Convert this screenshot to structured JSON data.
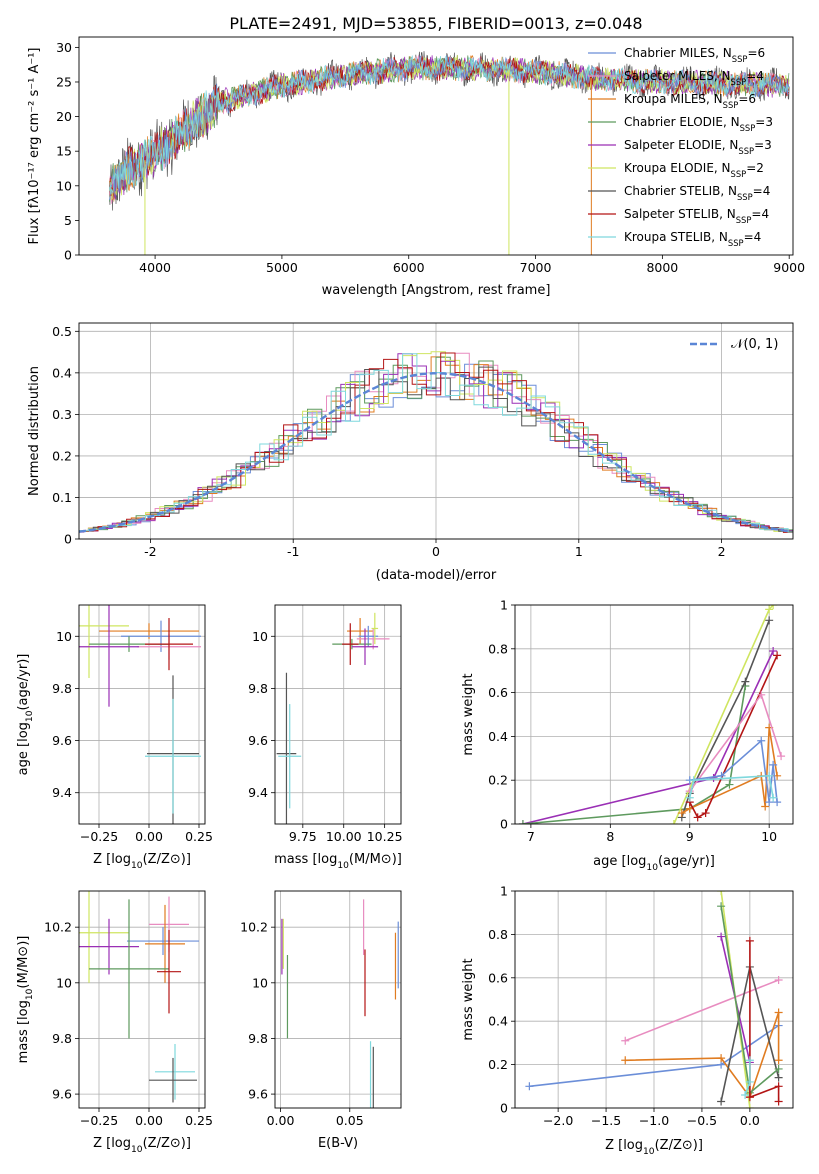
{
  "figure": {
    "title": "PLATE=2491, MJD=53855, FIBERID=0013, z=0.048"
  },
  "legend_spectrum": [
    {
      "label": "Chabrier MILES, N",
      "sub": "SSP",
      "eq": "=6",
      "color": "#6b8ed8"
    },
    {
      "label": "Salpeter MILES, N",
      "sub": "SSP",
      "eq": "=4",
      "color": "#e88cc0"
    },
    {
      "label": "Kroupa MILES, N",
      "sub": "SSP",
      "eq": "=6",
      "color": "#e07c21"
    },
    {
      "label": "Chabrier ELODIE, N",
      "sub": "SSP",
      "eq": "=3",
      "color": "#5e9a5e"
    },
    {
      "label": "Salpeter ELODIE, N",
      "sub": "SSP",
      "eq": "=3",
      "color": "#9a2fb5"
    },
    {
      "label": "Kroupa ELODIE, N",
      "sub": "SSP",
      "eq": "=2",
      "color": "#cfe560"
    },
    {
      "label": "Chabrier STELIB, N",
      "sub": "SSP",
      "eq": "=4",
      "color": "#555555"
    },
    {
      "label": "Salpeter STELIB, N",
      "sub": "SSP",
      "eq": "=4",
      "color": "#b31515"
    },
    {
      "label": "Kroupa STELIB, N",
      "sub": "SSP",
      "eq": "=4",
      "color": "#7fd8dd"
    }
  ],
  "chart_data": [
    {
      "id": "spectrum",
      "type": "line",
      "xlabel": "wavelength [Angstrom, rest frame]",
      "ylabel": "Flux [fλ10⁻¹⁷ erg cm⁻² s⁻¹ A⁻¹]",
      "xlim": [
        3400,
        9030
      ],
      "ylim": [
        0,
        31.5
      ],
      "xticks": [
        4000,
        5000,
        6000,
        7000,
        8000,
        9000
      ],
      "yticks": [
        0,
        5,
        10,
        15,
        20,
        25,
        30
      ],
      "grid": false,
      "legend": "right",
      "data_range": [
        3640,
        9000
      ],
      "continuum": [
        [
          3640,
          9.5
        ],
        [
          3800,
          12.5
        ],
        [
          4000,
          14.5
        ],
        [
          4200,
          17.5
        ],
        [
          4500,
          22
        ],
        [
          5000,
          24.5
        ],
        [
          5500,
          26
        ],
        [
          6000,
          27
        ],
        [
          6500,
          27
        ],
        [
          7000,
          26.5
        ],
        [
          7500,
          25.5
        ],
        [
          8000,
          25
        ],
        [
          8500,
          24.8
        ],
        [
          9000,
          24.5
        ]
      ]
    },
    {
      "id": "residuals",
      "type": "histogram",
      "xlabel": "(data-model)/error",
      "ylabel": "Normed distribution",
      "xlim": [
        -2.5,
        2.5
      ],
      "ylim": [
        0,
        0.52
      ],
      "xticks": [
        -2,
        -1,
        0,
        1,
        2
      ],
      "yticks": [
        0,
        0.1,
        0.2,
        0.3,
        0.4,
        0.5
      ],
      "grid": true,
      "legend": "top-right",
      "reference_curve": {
        "label": "𝒩(0, 1)",
        "mean": 0,
        "sigma": 1,
        "color": "#5b86d6"
      }
    },
    {
      "id": "age_vs_Z",
      "type": "errorbar",
      "xlabel": "Z [log₁₀(Z/Z⊙)]",
      "ylabel": "age  [log₁₀(age/yr)]",
      "xlim": [
        -0.35,
        0.28
      ],
      "ylim": [
        9.28,
        10.12
      ],
      "xticks": [
        -0.25,
        0.0,
        0.25
      ],
      "xticklabels": [
        "−0.25",
        "0.00",
        "0.25"
      ],
      "yticks": [
        9.4,
        9.6,
        9.8,
        10.0
      ],
      "grid": true,
      "points": [
        {
          "x": 0.0,
          "y": 10.02,
          "xerr": 0.25,
          "yerr": 0.03,
          "color": "#e07c21"
        },
        {
          "x": 0.06,
          "y": 10.0,
          "xerr": 0.2,
          "yerr": 0.06,
          "color": "#6b8ed8"
        },
        {
          "x": 0.1,
          "y": 9.96,
          "xerr": 0.16,
          "yerr": 0.05,
          "color": "#e88cc0"
        },
        {
          "x": -0.3,
          "y": 10.04,
          "xerr": 0.2,
          "yerr": 0.2,
          "color": "#cfe560"
        },
        {
          "x": -0.1,
          "y": 9.97,
          "xerr": 0.2,
          "yerr": 0.03,
          "color": "#5e9a5e"
        },
        {
          "x": -0.2,
          "y": 9.96,
          "xerr": 0.15,
          "yerr": 0.23,
          "color": "#9a2fb5"
        },
        {
          "x": 0.1,
          "y": 9.97,
          "xerr": 0.12,
          "yerr": 0.1,
          "color": "#b31515"
        },
        {
          "x": 0.12,
          "y": 9.55,
          "xerr": 0.13,
          "yerr": 0.3,
          "color": "#555555"
        },
        {
          "x": 0.12,
          "y": 9.54,
          "xerr": 0.14,
          "yerr": 0.22,
          "color": "#7fd8dd"
        }
      ]
    },
    {
      "id": "age_vs_mass",
      "type": "errorbar",
      "xlabel": "mass [log₁₀(M/M⊙)]",
      "ylabel": "",
      "xlim": [
        9.58,
        10.35
      ],
      "ylim": [
        9.28,
        10.12
      ],
      "xticks": [
        9.75,
        10.0,
        10.25
      ],
      "xticklabels": [
        "9.75",
        "10.00",
        "10.25"
      ],
      "yticks": [
        9.4,
        9.6,
        9.8,
        10.0
      ],
      "grid": true,
      "points": [
        {
          "x": 10.1,
          "y": 10.02,
          "xerr": 0.08,
          "yerr": 0.05,
          "color": "#e07c21"
        },
        {
          "x": 10.18,
          "y": 9.99,
          "xerr": 0.1,
          "yerr": 0.04,
          "color": "#e88cc0"
        },
        {
          "x": 10.15,
          "y": 10.0,
          "xerr": 0.06,
          "yerr": 0.04,
          "color": "#6b8ed8"
        },
        {
          "x": 10.05,
          "y": 9.97,
          "xerr": 0.12,
          "yerr": 0.02,
          "color": "#5e9a5e"
        },
        {
          "x": 10.13,
          "y": 9.96,
          "xerr": 0.08,
          "yerr": 0.07,
          "color": "#9a2fb5"
        },
        {
          "x": 10.04,
          "y": 9.97,
          "xerr": 0.05,
          "yerr": 0.08,
          "color": "#b31515"
        },
        {
          "x": 10.19,
          "y": 10.03,
          "xerr": 0.02,
          "yerr": 0.06,
          "color": "#cfe560"
        },
        {
          "x": 9.65,
          "y": 9.55,
          "xerr": 0.06,
          "yerr": 0.31,
          "color": "#555555"
        },
        {
          "x": 9.67,
          "y": 9.54,
          "xerr": 0.07,
          "yerr": 0.2,
          "color": "#7fd8dd"
        }
      ]
    },
    {
      "id": "weight_vs_age",
      "type": "line",
      "xlabel": "age  [log₁₀(age/yr)]",
      "ylabel": "mass weight",
      "xlim": [
        6.8,
        10.3
      ],
      "ylim": [
        0,
        1.0
      ],
      "xticks": [
        7,
        8,
        9,
        10
      ],
      "yticks": [
        0,
        0.2,
        0.4,
        0.6,
        0.8,
        1.0
      ],
      "grid": true,
      "series": [
        {
          "color": "#9a2fb5",
          "points": [
            [
              6.9,
              0.0
            ],
            [
              9.3,
              0.21
            ],
            [
              10.05,
              0.79
            ]
          ]
        },
        {
          "color": "#5e9a5e",
          "points": [
            [
              6.9,
              0.0
            ],
            [
              9.0,
              0.07
            ],
            [
              9.5,
              0.18
            ],
            [
              9.7,
              0.63
            ]
          ]
        },
        {
          "color": "#555555",
          "points": [
            [
              8.9,
              0.03
            ],
            [
              9.0,
              0.14
            ],
            [
              9.7,
              0.65
            ],
            [
              10.0,
              0.93
            ]
          ]
        },
        {
          "color": "#cfe560",
          "points": [
            [
              8.8,
              0.0
            ],
            [
              10.0,
              0.98
            ],
            [
              10.05,
              1.0
            ]
          ]
        },
        {
          "color": "#e07c21",
          "points": [
            [
              8.9,
              0.05
            ],
            [
              9.0,
              0.07
            ],
            [
              9.9,
              0.22
            ],
            [
              9.95,
              0.08
            ],
            [
              10.0,
              0.44
            ],
            [
              10.1,
              0.22
            ]
          ]
        },
        {
          "color": "#b31515",
          "points": [
            [
              9.0,
              0.1
            ],
            [
              9.1,
              0.03
            ],
            [
              9.2,
              0.05
            ],
            [
              10.1,
              0.77
            ]
          ]
        },
        {
          "color": "#e88cc0",
          "points": [
            [
              9.0,
              0.15
            ],
            [
              9.9,
              0.59
            ],
            [
              10.15,
              0.31
            ]
          ]
        },
        {
          "color": "#6b8ed8",
          "points": [
            [
              9.0,
              0.2
            ],
            [
              9.4,
              0.22
            ],
            [
              9.9,
              0.38
            ],
            [
              10.0,
              0.1
            ],
            [
              10.05,
              0.27
            ],
            [
              10.1,
              0.1
            ]
          ]
        },
        {
          "color": "#7fd8dd",
          "points": [
            [
              9.0,
              0.12
            ],
            [
              9.05,
              0.2
            ],
            [
              10.0,
              0.22
            ],
            [
              10.05,
              0.12
            ]
          ]
        }
      ]
    },
    {
      "id": "mass_vs_Z",
      "type": "errorbar",
      "xlabel": "Z [log₁₀(Z/Z⊙)]",
      "ylabel": "mass [log₁₀(M/M⊙)]",
      "xlim": [
        -0.35,
        0.28
      ],
      "ylim": [
        9.55,
        10.33
      ],
      "xticks": [
        -0.25,
        0.0,
        0.25
      ],
      "xticklabels": [
        "−0.25",
        "0.00",
        "0.25"
      ],
      "yticks": [
        9.6,
        9.8,
        10.0,
        10.2
      ],
      "grid": true,
      "points": [
        {
          "x": -0.3,
          "y": 10.18,
          "xerr": 0.2,
          "yerr": 0.18,
          "color": "#cfe560"
        },
        {
          "x": -0.2,
          "y": 10.13,
          "xerr": 0.15,
          "yerr": 0.1,
          "color": "#9a2fb5"
        },
        {
          "x": 0.1,
          "y": 10.21,
          "xerr": 0.1,
          "yerr": 0.1,
          "color": "#e88cc0"
        },
        {
          "x": 0.07,
          "y": 10.15,
          "xerr": 0.18,
          "yerr": 0.05,
          "color": "#6b8ed8"
        },
        {
          "x": 0.08,
          "y": 10.14,
          "xerr": 0.1,
          "yerr": 0.14,
          "color": "#e07c21"
        },
        {
          "x": -0.1,
          "y": 10.05,
          "xerr": 0.2,
          "yerr": 0.25,
          "color": "#5e9a5e"
        },
        {
          "x": 0.1,
          "y": 10.04,
          "xerr": 0.06,
          "yerr": 0.15,
          "color": "#b31515"
        },
        {
          "x": 0.13,
          "y": 9.68,
          "xerr": 0.1,
          "yerr": 0.1,
          "color": "#7fd8dd"
        },
        {
          "x": 0.12,
          "y": 9.65,
          "xerr": 0.12,
          "yerr": 0.08,
          "color": "#555555"
        }
      ]
    },
    {
      "id": "mass_vs_ebv",
      "type": "errorbar",
      "xlabel": "E(B-V)",
      "ylabel": "",
      "xlim": [
        -0.004,
        0.087
      ],
      "ylim": [
        9.55,
        10.33
      ],
      "xticks": [
        0.0,
        0.05
      ],
      "xticklabels": [
        "0.00",
        "0.05"
      ],
      "yticks": [
        9.6,
        9.8,
        10.0,
        10.2
      ],
      "grid": true,
      "points": [
        {
          "x": 0.002,
          "y": 10.14,
          "xerr": 0,
          "yerr": 0.09,
          "color": "#cfe560"
        },
        {
          "x": 0.001,
          "y": 10.13,
          "xerr": 0,
          "yerr": 0.1,
          "color": "#9a2fb5"
        },
        {
          "x": 0.005,
          "y": 9.95,
          "xerr": 0,
          "yerr": 0.15,
          "color": "#5e9a5e"
        },
        {
          "x": 0.06,
          "y": 10.2,
          "xerr": 0,
          "yerr": 0.1,
          "color": "#e88cc0"
        },
        {
          "x": 0.061,
          "y": 10.0,
          "xerr": 0,
          "yerr": 0.12,
          "color": "#b31515"
        },
        {
          "x": 0.083,
          "y": 10.06,
          "xerr": 0,
          "yerr": 0.12,
          "color": "#e07c21"
        },
        {
          "x": 0.085,
          "y": 10.1,
          "xerr": 0,
          "yerr": 0.12,
          "color": "#6b8ed8"
        },
        {
          "x": 0.065,
          "y": 9.67,
          "xerr": 0,
          "yerr": 0.12,
          "color": "#7fd8dd"
        },
        {
          "x": 0.067,
          "y": 9.66,
          "xerr": 0,
          "yerr": 0.11,
          "color": "#555555"
        }
      ]
    },
    {
      "id": "weight_vs_Z",
      "type": "line",
      "xlabel": "Z [log₁₀(Z/Z⊙)]",
      "ylabel": "mass weight",
      "xlim": [
        -2.45,
        0.45
      ],
      "ylim": [
        0,
        1.0
      ],
      "xticks": [
        -2.0,
        -1.5,
        -1.0,
        -0.5,
        0.0
      ],
      "xticklabels": [
        "−2.0",
        "−1.5",
        "−1.0",
        "−0.5",
        "0.0"
      ],
      "yticks": [
        0,
        0.2,
        0.4,
        0.6,
        0.8,
        1.0
      ],
      "grid": true,
      "series": [
        {
          "color": "#6b8ed8",
          "points": [
            [
              -2.3,
              0.1
            ],
            [
              -0.3,
              0.2
            ],
            [
              0.3,
              0.38
            ]
          ]
        },
        {
          "color": "#e88cc0",
          "points": [
            [
              -1.3,
              0.31
            ],
            [
              0.3,
              0.59
            ]
          ]
        },
        {
          "color": "#e07c21",
          "points": [
            [
              -1.3,
              0.22
            ],
            [
              -0.3,
              0.23
            ],
            [
              0.0,
              0.05
            ],
            [
              0.3,
              0.44
            ],
            [
              0.3,
              0.22
            ]
          ]
        },
        {
          "color": "#9a2fb5",
          "points": [
            [
              -0.3,
              0.79
            ],
            [
              0.0,
              0.21
            ]
          ]
        },
        {
          "color": "#cfe560",
          "points": [
            [
              -0.3,
              1.0
            ],
            [
              0.0,
              0.0
            ]
          ]
        },
        {
          "color": "#555555",
          "points": [
            [
              -0.3,
              0.03
            ],
            [
              0.0,
              0.65
            ],
            [
              0.3,
              0.14
            ]
          ]
        },
        {
          "color": "#5e9a5e",
          "points": [
            [
              -0.3,
              0.93
            ],
            [
              0.0,
              0.07
            ],
            [
              0.3,
              0.18
            ]
          ]
        },
        {
          "color": "#b31515",
          "points": [
            [
              0.0,
              0.77
            ],
            [
              0.0,
              0.05
            ],
            [
              0.3,
              0.1
            ],
            [
              0.3,
              0.03
            ]
          ]
        },
        {
          "color": "#7fd8dd",
          "points": [
            [
              0.0,
              0.22
            ],
            [
              0.0,
              0.12
            ],
            [
              -0.05,
              0.06
            ]
          ]
        }
      ]
    }
  ]
}
